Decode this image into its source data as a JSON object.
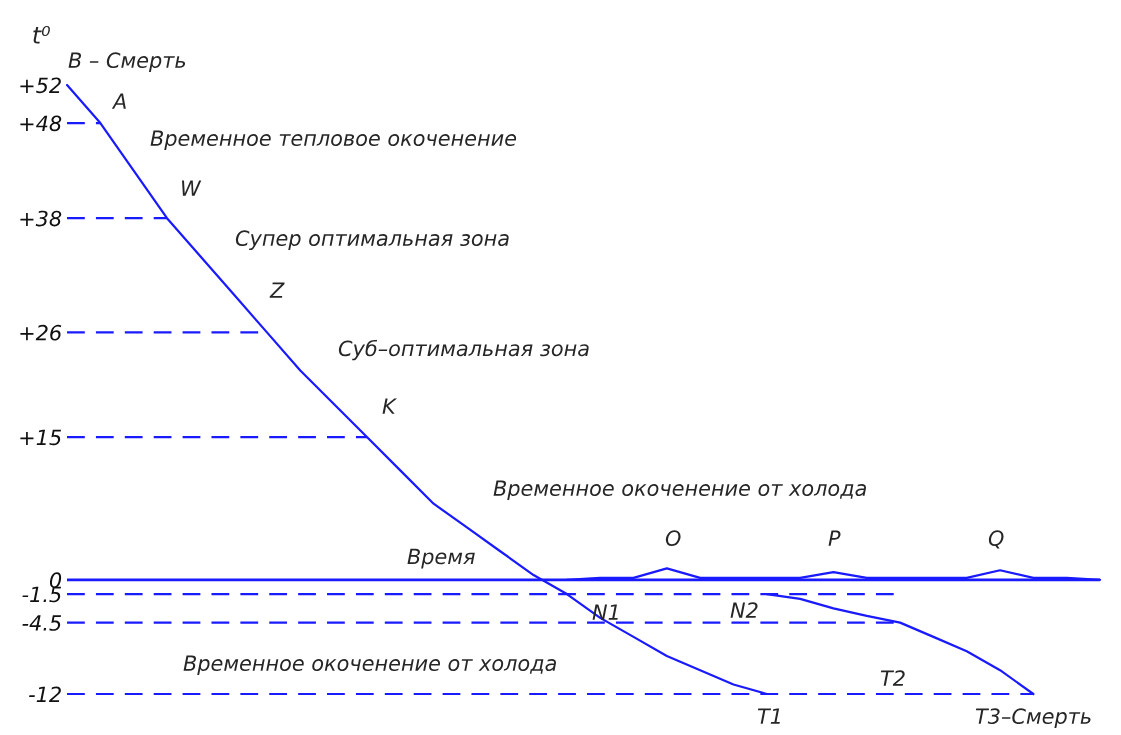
{
  "chart_data": {
    "type": "line",
    "ylabel": "t⁰",
    "categories": [
      null,
      null,
      null,
      null,
      null,
      null,
      null,
      null,
      null,
      null,
      null,
      null,
      null,
      null,
      null,
      null,
      null,
      null,
      null,
      null,
      null,
      null,
      null,
      null,
      null,
      null,
      null,
      null,
      null,
      null,
      null,
      null
    ],
    "series": [
      {
        "color": "#1a1aff",
        "values": [
          52,
          48,
          43,
          38,
          34,
          30,
          26,
          22,
          18.5,
          15,
          11.5,
          8,
          5.5,
          3,
          0.5,
          -1.5,
          -4,
          -6,
          -8,
          -9.5,
          -11,
          -12,
          null,
          null,
          null,
          null,
          null,
          null,
          null,
          null,
          null,
          null
        ]
      },
      {
        "color": "#1a1aff",
        "values": [
          null,
          null,
          null,
          null,
          null,
          null,
          null,
          null,
          null,
          null,
          null,
          null,
          null,
          null,
          null,
          null,
          null,
          null,
          null,
          null,
          null,
          -1.5,
          -2,
          -3,
          -3.8,
          -4.5,
          -6,
          -7.5,
          -9.5,
          -12,
          null,
          null
        ]
      },
      {
        "color": "#1a1aff",
        "values": [
          null,
          null,
          null,
          null,
          null,
          null,
          null,
          null,
          null,
          null,
          null,
          null,
          null,
          null,
          null,
          0,
          0.2,
          0.2,
          1.2,
          0.2,
          0.2,
          0.2,
          0.2,
          0.8,
          0.2,
          0.2,
          0.2,
          0.2,
          1,
          0.2,
          0.2,
          0
        ]
      },
      {
        "color": "#1a1aff",
        "line_style": "dashed",
        "values": [
          48,
          48,
          null,
          null,
          null,
          null,
          null,
          null,
          null,
          null,
          null,
          null,
          null,
          null,
          null,
          null,
          null,
          null,
          null,
          null,
          null,
          null,
          null,
          null,
          null,
          null,
          null,
          null,
          null,
          null,
          null,
          null
        ]
      },
      {
        "color": "#1a1aff",
        "line_style": "dashed",
        "values": [
          38,
          38,
          38,
          38,
          null,
          null,
          null,
          null,
          null,
          null,
          null,
          null,
          null,
          null,
          null,
          null,
          null,
          null,
          null,
          null,
          null,
          null,
          null,
          null,
          null,
          null,
          null,
          null,
          null,
          null,
          null,
          null
        ]
      },
      {
        "color": "#1a1aff",
        "line_style": "dashed",
        "values": [
          26,
          26,
          26,
          26,
          26,
          26,
          26,
          null,
          null,
          null,
          null,
          null,
          null,
          null,
          null,
          null,
          null,
          null,
          null,
          null,
          null,
          null,
          null,
          null,
          null,
          null,
          null,
          null,
          null,
          null,
          null,
          null
        ]
      },
      {
        "color": "#1a1aff",
        "line_style": "dashed",
        "values": [
          15,
          15,
          15,
          15,
          15,
          15,
          15,
          15,
          15,
          15,
          null,
          null,
          null,
          null,
          null,
          null,
          null,
          null,
          null,
          null,
          null,
          null,
          null,
          null,
          null,
          null,
          null,
          null,
          null,
          null,
          null,
          null
        ]
      },
      {
        "color": "#1a1aff",
        "line_style": "dashed",
        "values": [
          -1.5,
          -1.5,
          -1.5,
          -1.5,
          -1.5,
          -1.5,
          -1.5,
          -1.5,
          -1.5,
          -1.5,
          -1.5,
          -1.5,
          -1.5,
          -1.5,
          -1.5,
          -1.5,
          -1.5,
          -1.5,
          -1.5,
          -1.5,
          -1.5,
          -1.5,
          -1.5,
          -1.5,
          -1.5,
          -1.5,
          null,
          null,
          null,
          null,
          null,
          null
        ]
      },
      {
        "color": "#1a1aff",
        "line_style": "dashed",
        "values": [
          -4.5,
          -4.5,
          -4.5,
          -4.5,
          -4.5,
          -4.5,
          -4.5,
          -4.5,
          -4.5,
          -4.5,
          -4.5,
          -4.5,
          -4.5,
          -4.5,
          -4.5,
          -4.5,
          -4.5,
          -4.5,
          -4.5,
          -4.5,
          -4.5,
          -4.5,
          -4.5,
          -4.5,
          -4.5,
          -4.5,
          null,
          null,
          null,
          null,
          null,
          null
        ]
      },
      {
        "color": "#1a1aff",
        "line_style": "dashed",
        "values": [
          -12,
          -12,
          -12,
          -12,
          -12,
          -12,
          -12,
          -12,
          -12,
          -12,
          -12,
          -12,
          -12,
          -12,
          -12,
          -12,
          -12,
          -12,
          -12,
          -12,
          -12,
          -12,
          -12,
          -12,
          -12,
          -12,
          -12,
          -12,
          -12,
          -12,
          null,
          null
        ]
      }
    ],
    "ylim": [
      -12,
      52
    ],
    "yticks": [
      {
        "value": 52,
        "label": "+52"
      },
      {
        "value": 48,
        "label": "+48"
      },
      {
        "value": 38,
        "label": "+38"
      },
      {
        "value": 26,
        "label": "+26"
      },
      {
        "value": 15,
        "label": "+15"
      },
      0,
      {
        "value": -1.5,
        "label": "-1.5"
      },
      {
        "value": -4.5,
        "label": "-4.5"
      },
      {
        "value": -12,
        "label": "-12"
      }
    ],
    "tick_labels": "y",
    "ref_lines": [
      {
        "axis": "y",
        "value": 0,
        "label": "Время",
        "color": "#1a1aff"
      }
    ],
    "annotations": [
      "B – Смерть",
      "A",
      "W",
      "Z",
      "K",
      "N1",
      "N2",
      "T1",
      "T2",
      "T3–Смерть",
      "O",
      "P",
      "Q",
      "Временное тепловое окоченение",
      "Супер оптимальная зона",
      "Суб–оптимальная зона",
      "Временное окоченение от холода",
      "Временное окоченение от холода"
    ]
  }
}
